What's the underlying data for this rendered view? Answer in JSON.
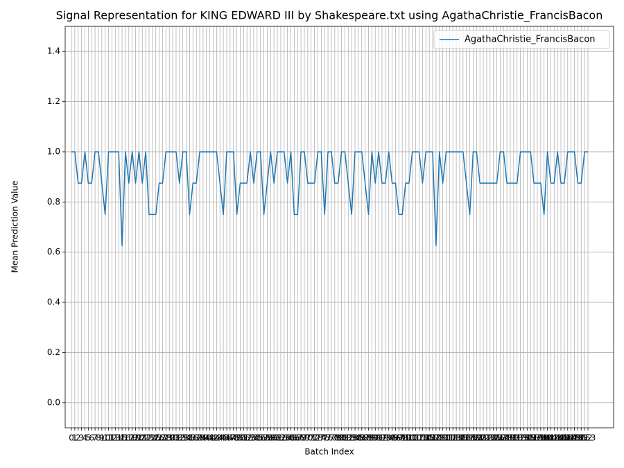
{
  "chart_data": {
    "type": "line",
    "title": "Signal Representation for KING EDWARD III by Shakespeare.txt using AgathaChristie_FrancisBacon",
    "xlabel": "Batch Index",
    "ylabel": "Mean Prediction Value",
    "x": [
      0,
      1,
      2,
      3,
      4,
      5,
      6,
      7,
      8,
      9,
      10,
      11,
      12,
      13,
      14,
      15,
      16,
      17,
      18,
      19,
      20,
      21,
      22,
      23,
      24,
      25,
      26,
      27,
      28,
      29,
      30,
      31,
      32,
      33,
      34,
      35,
      36,
      37,
      38,
      39,
      40,
      41,
      42,
      43,
      44,
      45,
      46,
      47,
      48,
      49,
      50,
      51,
      52,
      53,
      54,
      55,
      56,
      57,
      58,
      59,
      60,
      61,
      62,
      63,
      64,
      65,
      66,
      67,
      68,
      69,
      70,
      71,
      72,
      73,
      74,
      75,
      76,
      77,
      78,
      79,
      80,
      81,
      82,
      83,
      84,
      85,
      86,
      87,
      88,
      89,
      90,
      91,
      92,
      93,
      94,
      95,
      96,
      97,
      98,
      99,
      100,
      101,
      102,
      103,
      104,
      105,
      106,
      107,
      108,
      109,
      110,
      111,
      112,
      113,
      114,
      115,
      116,
      117,
      118,
      119,
      120,
      121,
      122,
      123,
      124,
      125,
      126,
      127,
      128,
      129,
      130,
      131,
      132,
      133,
      134,
      135,
      136,
      137,
      138,
      139,
      140,
      141,
      142,
      143,
      144,
      145,
      146,
      147,
      148,
      149,
      150,
      151,
      152,
      153
    ],
    "series": [
      {
        "name": "AgathaChristie_FrancisBacon",
        "color": "#1f77b4",
        "values": [
          1,
          1,
          0.875,
          0.875,
          1,
          0.875,
          0.875,
          1,
          1,
          0.875,
          0.75,
          1,
          1,
          1,
          1,
          0.625,
          1,
          0.875,
          1,
          0.875,
          1,
          0.875,
          1,
          0.75,
          0.75,
          0.75,
          0.875,
          0.875,
          1,
          1,
          1,
          1,
          0.875,
          1,
          1,
          0.75,
          0.875,
          0.875,
          1,
          1,
          1,
          1,
          1,
          1,
          0.875,
          0.75,
          1,
          1,
          1,
          0.75,
          0.875,
          0.875,
          0.875,
          1,
          0.875,
          1,
          1,
          0.75,
          0.875,
          1,
          0.875,
          1,
          1,
          1,
          0.875,
          1,
          0.75,
          0.75,
          1,
          1,
          0.875,
          0.875,
          0.875,
          1,
          1,
          0.75,
          1,
          1,
          0.875,
          0.875,
          1,
          1,
          0.875,
          0.75,
          1,
          1,
          1,
          0.875,
          0.75,
          1,
          0.875,
          1,
          0.875,
          0.875,
          1,
          0.875,
          0.875,
          0.75,
          0.75,
          0.875,
          0.875,
          1,
          1,
          1,
          0.875,
          1,
          1,
          1,
          0.625,
          1,
          0.875,
          1,
          1,
          1,
          1,
          1,
          1,
          0.875,
          0.75,
          1,
          1,
          0.875,
          0.875,
          0.875,
          0.875,
          0.875,
          0.875,
          1,
          1,
          0.875,
          0.875,
          0.875,
          0.875,
          1,
          1,
          1,
          1,
          0.875,
          0.875,
          0.875,
          0.75,
          1,
          0.875,
          0.875,
          1,
          0.875,
          0.875,
          1,
          1,
          1,
          0.875,
          0.875,
          1,
          1
        ]
      }
    ],
    "xlim": [
      -1.85,
      160.6
    ],
    "ylim": [
      -0.1,
      1.5
    ],
    "xticks": [
      0,
      1,
      2,
      3,
      4,
      5,
      6,
      7,
      8,
      9,
      10,
      11,
      12,
      13,
      14,
      15,
      16,
      17,
      18,
      19,
      20,
      21,
      22,
      23,
      24,
      25,
      26,
      27,
      28,
      29,
      30,
      31,
      32,
      33,
      34,
      35,
      36,
      37,
      38,
      39,
      40,
      41,
      42,
      43,
      44,
      45,
      46,
      47,
      48,
      49,
      50,
      51,
      52,
      53,
      54,
      55,
      56,
      57,
      58,
      59,
      60,
      61,
      62,
      63,
      64,
      65,
      66,
      67,
      68,
      69,
      70,
      71,
      72,
      73,
      74,
      75,
      76,
      77,
      78,
      79,
      80,
      81,
      82,
      83,
      84,
      85,
      86,
      87,
      88,
      89,
      90,
      91,
      92,
      93,
      94,
      95,
      96,
      97,
      98,
      99,
      100,
      101,
      102,
      103,
      104,
      105,
      106,
      107,
      108,
      109,
      110,
      111,
      112,
      113,
      114,
      115,
      116,
      117,
      118,
      119,
      120,
      121,
      122,
      123,
      124,
      125,
      126,
      127,
      128,
      129,
      130,
      131,
      132,
      133,
      134,
      135,
      136,
      137,
      138,
      139,
      140,
      141,
      142,
      143,
      144,
      145,
      146,
      147,
      148,
      149,
      150,
      151,
      152,
      153
    ],
    "yticks": [
      {
        "value": 0,
        "label": "0.0"
      },
      0.2,
      0.4,
      0.6,
      0.8,
      {
        "value": 1,
        "label": "1.0"
      },
      1.2,
      1.4
    ],
    "grid": true,
    "legend": "upper right"
  }
}
